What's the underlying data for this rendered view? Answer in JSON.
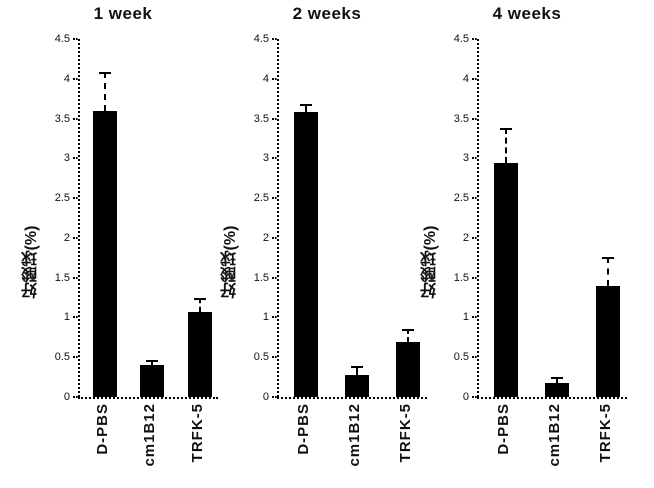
{
  "figure": {
    "background": "#ffffff",
    "bar_color": "#000000",
    "axis_color": "#000000",
    "text_color": "#111111"
  },
  "chart_data": [
    {
      "type": "bar",
      "title": "1 week",
      "ylabel": "好酸球(%)",
      "xlabel": "",
      "categories": [
        "D-PBS",
        "cm1B12",
        "TRFK-5"
      ],
      "values": [
        3.6,
        0.4,
        1.07
      ],
      "errors": [
        0.48,
        0.06,
        0.17
      ],
      "ylim": [
        0,
        4.5
      ],
      "yticks": [
        0,
        0.5,
        1,
        1.5,
        2,
        2.5,
        3,
        3.5,
        4,
        4.5
      ],
      "grid": false,
      "legend": "none"
    },
    {
      "type": "bar",
      "title": "2 weeks",
      "ylabel": "好酸球(%)",
      "xlabel": "",
      "categories": [
        "D-PBS",
        "cm1B12",
        "TRFK-5"
      ],
      "values": [
        3.58,
        0.28,
        0.69
      ],
      "errors": [
        0.1,
        0.11,
        0.17
      ],
      "ylim": [
        0,
        4.5
      ],
      "yticks": [
        0,
        0.5,
        1,
        1.5,
        2,
        2.5,
        3,
        3.5,
        4,
        4.5
      ],
      "grid": false,
      "legend": "none"
    },
    {
      "type": "bar",
      "title": "4 weeks",
      "ylabel": "好酸球(%)",
      "xlabel": "",
      "categories": [
        "D-PBS",
        "cm1B12",
        "TRFK-5"
      ],
      "values": [
        2.94,
        0.18,
        1.4
      ],
      "errors": [
        0.44,
        0.07,
        0.36
      ],
      "ylim": [
        0,
        4.5
      ],
      "yticks": [
        0,
        0.5,
        1,
        1.5,
        2,
        2.5,
        3,
        3.5,
        4,
        4.5
      ],
      "grid": false,
      "legend": "none"
    }
  ]
}
